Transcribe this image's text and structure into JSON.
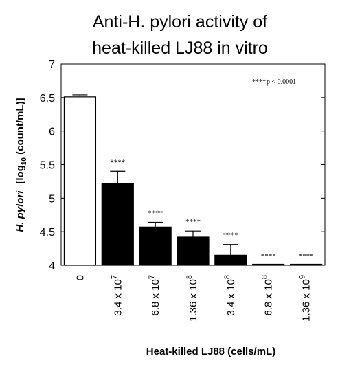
{
  "chart_data": {
    "type": "bar",
    "title": [
      "Anti-H. pylori activity of",
      "heat-killed LJ88 in vitro"
    ],
    "ylabel": {
      "italic_part": "H. pylori",
      "prefix": "[log",
      "subscript": "10",
      "suffix": " (count/mL)]"
    },
    "xlabel": "Heat-killed LJ88 (cells/mL)",
    "ylim": [
      4,
      7
    ],
    "yticks": [
      "4",
      "4.5",
      "5",
      "5.5",
      "6",
      "6.5",
      "7"
    ],
    "categories": [
      {
        "mantissa": "0",
        "exponent": ""
      },
      {
        "mantissa": "3.4 x 10",
        "exponent": "7"
      },
      {
        "mantissa": "6.8 x 10",
        "exponent": "7"
      },
      {
        "mantissa": "1.36 x 10",
        "exponent": "8"
      },
      {
        "mantissa": "3.4 x 10",
        "exponent": "8"
      },
      {
        "mantissa": "6.8 x 10",
        "exponent": "8"
      },
      {
        "mantissa": "1.36 x 10",
        "exponent": "9"
      }
    ],
    "values": [
      6.51,
      5.22,
      4.57,
      4.42,
      4.15,
      4.0,
      4.0
    ],
    "errors": [
      0.03,
      0.18,
      0.07,
      0.09,
      0.16,
      0,
      0
    ],
    "bar_fills": [
      "#ffffff",
      "#000000",
      "#000000",
      "#000000",
      "#000000",
      "#000000",
      "#000000"
    ],
    "significance": [
      "",
      "****",
      "****",
      "****",
      "****",
      "****",
      "****"
    ],
    "legend_note": {
      "stars": "****",
      "text": "p < 0.0001"
    }
  }
}
